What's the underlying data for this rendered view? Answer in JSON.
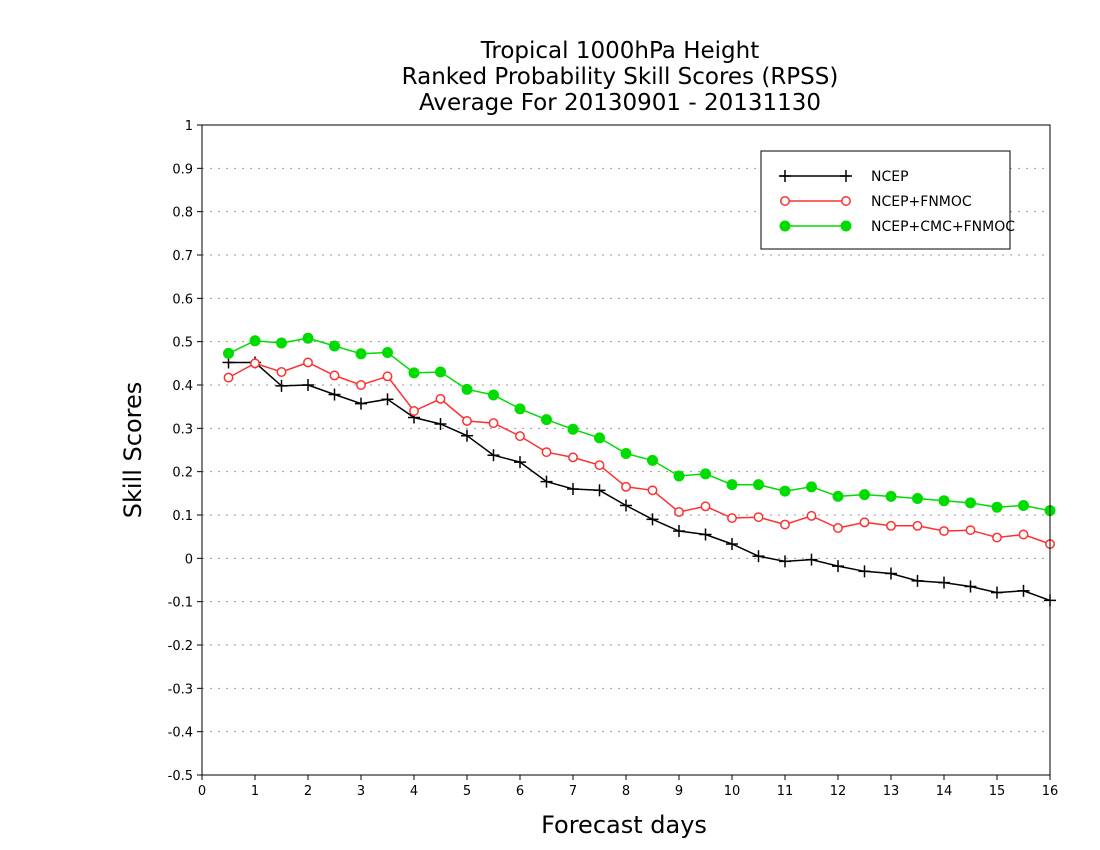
{
  "chart_data": {
    "type": "line",
    "title": [
      "Tropical 1000hPa Height",
      "Ranked Probability Skill Scores (RPSS)",
      "Average For 20130901 - 20131130"
    ],
    "xlabel": "Forecast days",
    "ylabel": "Skill Scores",
    "xlim": [
      0,
      16
    ],
    "ylim": [
      -0.5,
      1
    ],
    "x_ticks": [
      "0",
      "1",
      "2",
      "3",
      "4",
      "5",
      "6",
      "7",
      "8",
      "9",
      "10",
      "11",
      "12",
      "13",
      "14",
      "15",
      "16"
    ],
    "y_ticks": [
      "-0.5",
      "-0.4",
      "-0.3",
      "-0.2",
      "-0.1",
      "0",
      "0.1",
      "0.2",
      "0.3",
      "0.4",
      "0.5",
      "0.6",
      "0.7",
      "0.8",
      "0.9",
      "1"
    ],
    "grid": "horizontal-dotted",
    "legend_position": "top-right",
    "x": [
      0.5,
      1,
      1.5,
      2,
      2.5,
      3,
      3.5,
      4,
      4.5,
      5,
      5.5,
      6,
      6.5,
      7,
      7.5,
      8,
      8.5,
      9,
      9.5,
      10,
      10.5,
      11,
      11.5,
      12,
      12.5,
      13,
      13.5,
      14,
      14.5,
      15,
      15.5,
      16
    ],
    "series": [
      {
        "name": "NCEP",
        "color": "#000000",
        "marker": "plus",
        "values": [
          0.452,
          0.452,
          0.398,
          0.4,
          0.378,
          0.357,
          0.367,
          0.325,
          0.31,
          0.283,
          0.238,
          0.222,
          0.177,
          0.16,
          0.157,
          0.122,
          0.09,
          0.063,
          0.055,
          0.033,
          0.005,
          -0.007,
          -0.003,
          -0.018,
          -0.03,
          -0.035,
          -0.052,
          -0.056,
          -0.065,
          -0.079,
          -0.075,
          -0.097
        ]
      },
      {
        "name": "NCEP+FNMOC",
        "color": "#ff3030",
        "marker": "open-circle",
        "values": [
          0.417,
          0.45,
          0.43,
          0.452,
          0.422,
          0.4,
          0.42,
          0.34,
          0.368,
          0.317,
          0.312,
          0.282,
          0.245,
          0.233,
          0.215,
          0.165,
          0.157,
          0.107,
          0.12,
          0.093,
          0.095,
          0.078,
          0.098,
          0.07,
          0.083,
          0.075,
          0.075,
          0.063,
          0.065,
          0.048,
          0.055,
          0.033
        ]
      },
      {
        "name": "NCEP+CMC+FNMOC",
        "color": "#00dc00",
        "marker": "filled-circle",
        "values": [
          0.473,
          0.502,
          0.497,
          0.508,
          0.49,
          0.472,
          0.475,
          0.428,
          0.43,
          0.39,
          0.377,
          0.345,
          0.32,
          0.298,
          0.278,
          0.242,
          0.226,
          0.19,
          0.195,
          0.17,
          0.17,
          0.155,
          0.165,
          0.143,
          0.147,
          0.143,
          0.138,
          0.133,
          0.128,
          0.118,
          0.122,
          0.11
        ]
      }
    ]
  }
}
